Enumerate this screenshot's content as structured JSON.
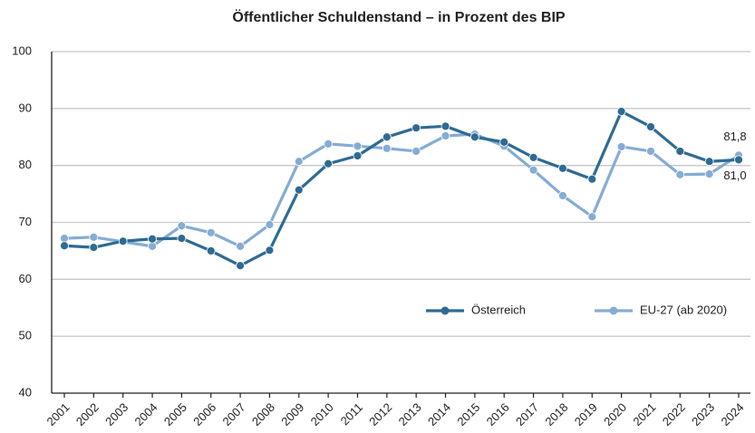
{
  "chart_data": {
    "type": "line",
    "title": "Öffentlicher Schuldenstand – in Prozent des BIP",
    "categories": [
      "2001",
      "2002",
      "2003",
      "2004",
      "2005",
      "2006",
      "2007",
      "2008",
      "2009",
      "2010",
      "2011",
      "2012",
      "2013",
      "2014",
      "2015",
      "2016",
      "2017",
      "2018",
      "2019",
      "2020",
      "2021",
      "2022",
      "2023",
      "2024"
    ],
    "series": [
      {
        "name": "Österreich",
        "color": "#2e6b92",
        "values": [
          65.9,
          65.6,
          66.7,
          67.1,
          67.2,
          65.0,
          62.4,
          65.1,
          75.7,
          80.3,
          81.7,
          85.0,
          86.6,
          86.9,
          85.0,
          84.1,
          81.4,
          79.5,
          77.6,
          89.5,
          86.8,
          82.5,
          80.7,
          81.0
        ],
        "value_labels": [
          null,
          null,
          null,
          null,
          null,
          null,
          null,
          null,
          null,
          null,
          null,
          null,
          null,
          null,
          null,
          null,
          null,
          null,
          null,
          null,
          null,
          null,
          null,
          "81,0"
        ]
      },
      {
        "name": "EU-27 (ab 2020)",
        "color": "#85acd3",
        "values": [
          67.2,
          67.4,
          66.6,
          65.8,
          69.4,
          68.2,
          65.8,
          69.6,
          80.7,
          83.8,
          83.4,
          83.0,
          82.5,
          85.2,
          85.5,
          83.4,
          79.2,
          74.7,
          71.0,
          83.3,
          82.5,
          78.4,
          78.5,
          81.8
        ],
        "value_labels": [
          null,
          null,
          null,
          null,
          null,
          null,
          null,
          null,
          null,
          null,
          null,
          null,
          null,
          null,
          null,
          null,
          null,
          null,
          null,
          null,
          null,
          null,
          null,
          "81,8"
        ]
      }
    ],
    "ylim": [
      40,
      100
    ],
    "yticks": [
      40,
      50,
      60,
      70,
      80,
      90,
      100
    ],
    "grid": true,
    "legend": "right"
  }
}
